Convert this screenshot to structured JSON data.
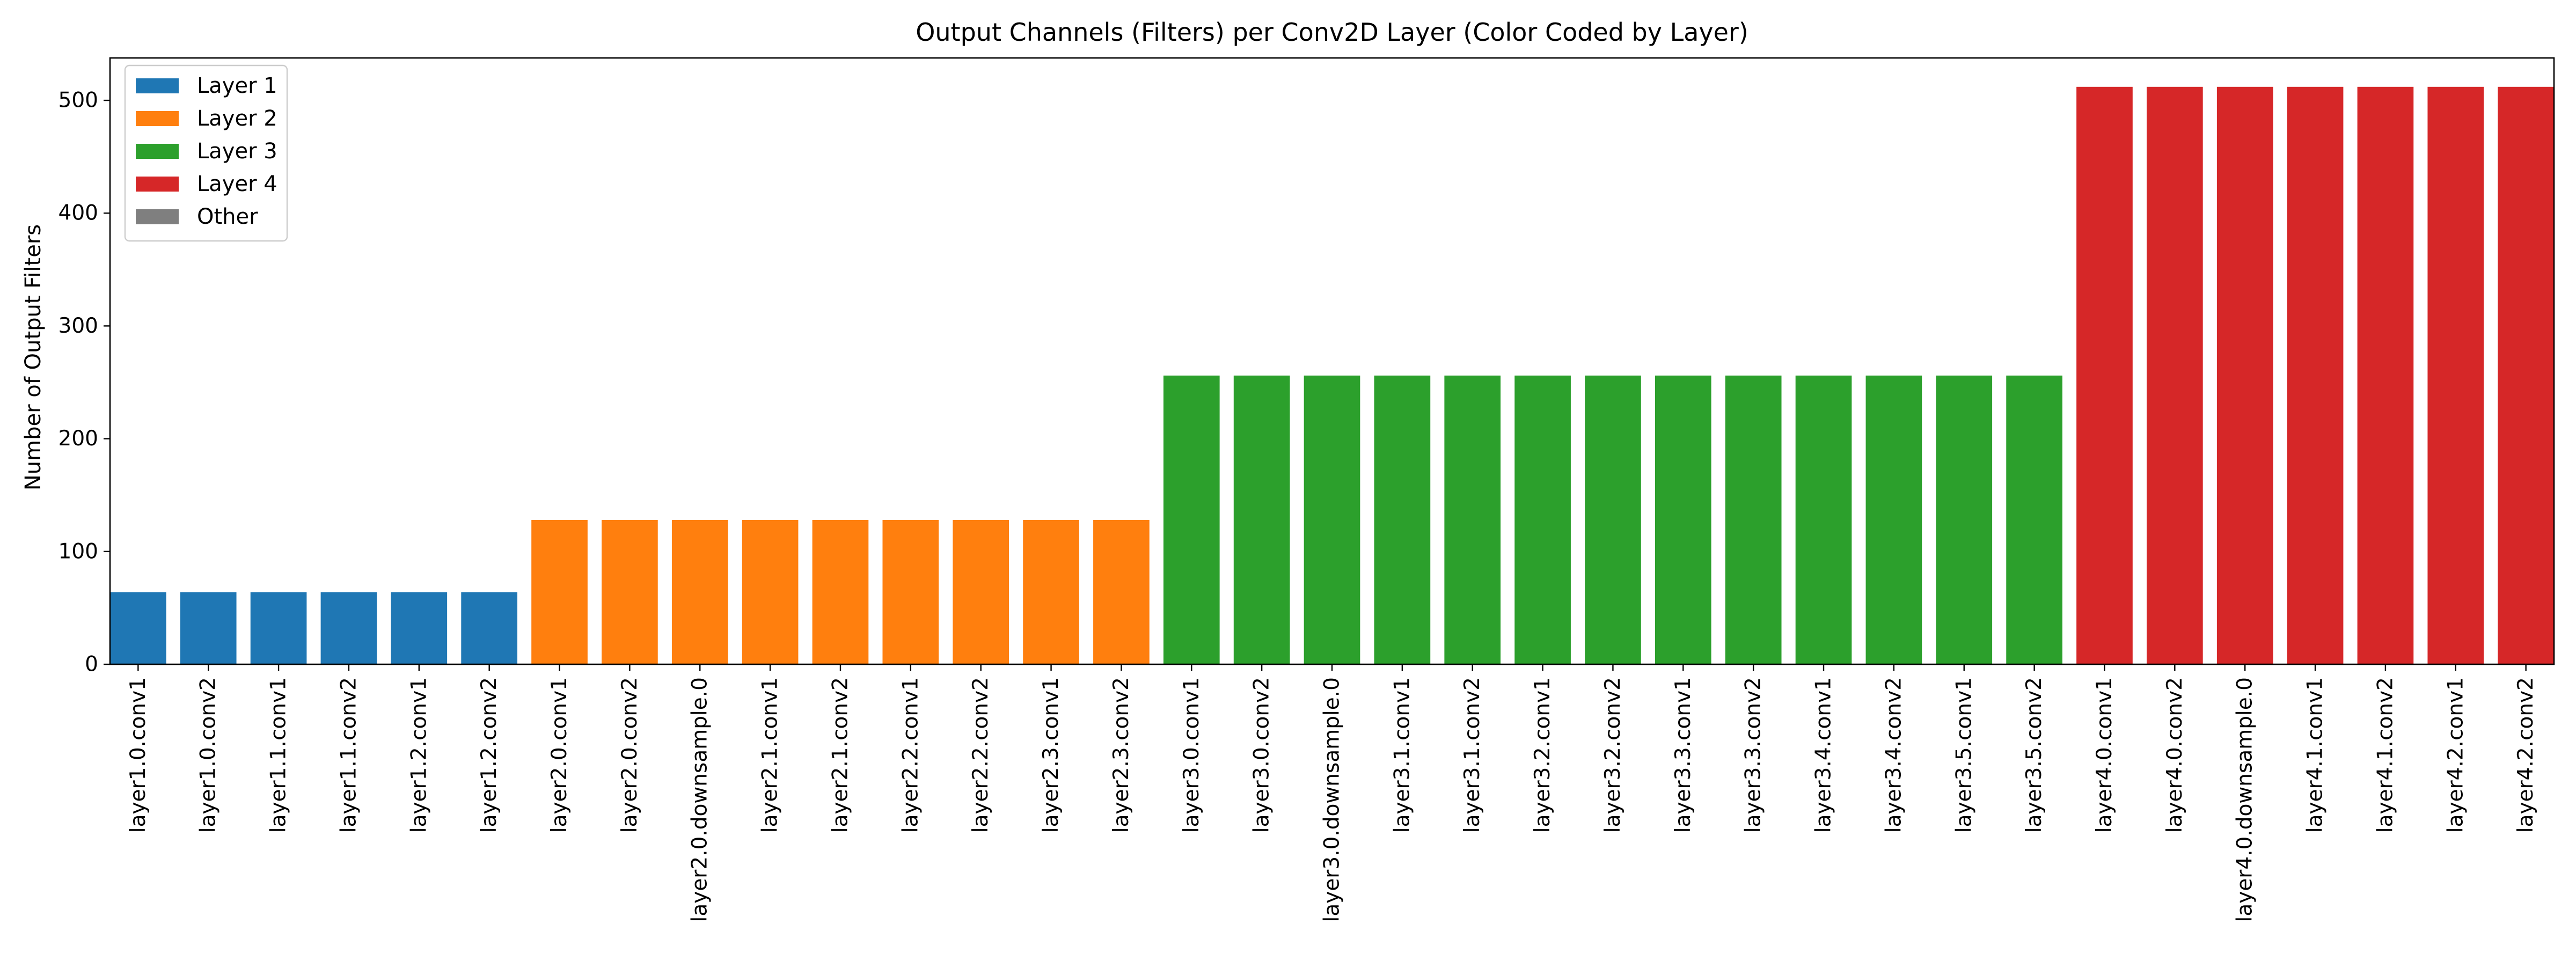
{
  "chart_data": {
    "type": "bar",
    "title": "Output Channels (Filters) per Conv2D Layer (Color Coded by Layer)",
    "xlabel": "",
    "ylabel": "Number of Output Filters",
    "ylim": [
      0,
      537.6
    ],
    "yticks": [
      0,
      100,
      200,
      300,
      400,
      500
    ],
    "grid": false,
    "legend_position": "top-left",
    "legend": [
      {
        "label": "Layer 1",
        "color": "#1f77b4"
      },
      {
        "label": "Layer 2",
        "color": "#ff7f0e"
      },
      {
        "label": "Layer 3",
        "color": "#2ca02c"
      },
      {
        "label": "Layer 4",
        "color": "#d62728"
      },
      {
        "label": "Other",
        "color": "#7f7f7f"
      }
    ],
    "categories": [
      "layer1.0.conv1",
      "layer1.0.conv2",
      "layer1.1.conv1",
      "layer1.1.conv2",
      "layer1.2.conv1",
      "layer1.2.conv2",
      "layer2.0.conv1",
      "layer2.0.conv2",
      "layer2.0.downsample.0",
      "layer2.1.conv1",
      "layer2.1.conv2",
      "layer2.2.conv1",
      "layer2.2.conv2",
      "layer2.3.conv1",
      "layer2.3.conv2",
      "layer3.0.conv1",
      "layer3.0.conv2",
      "layer3.0.downsample.0",
      "layer3.1.conv1",
      "layer3.1.conv2",
      "layer3.2.conv1",
      "layer3.2.conv2",
      "layer3.3.conv1",
      "layer3.3.conv2",
      "layer3.4.conv1",
      "layer3.4.conv2",
      "layer3.5.conv1",
      "layer3.5.conv2",
      "layer4.0.conv1",
      "layer4.0.conv2",
      "layer4.0.downsample.0",
      "layer4.1.conv1",
      "layer4.1.conv2",
      "layer4.2.conv1",
      "layer4.2.conv2"
    ],
    "values": [
      64,
      64,
      64,
      64,
      64,
      64,
      128,
      128,
      128,
      128,
      128,
      128,
      128,
      128,
      128,
      256,
      256,
      256,
      256,
      256,
      256,
      256,
      256,
      256,
      256,
      256,
      256,
      256,
      512,
      512,
      512,
      512,
      512,
      512,
      512
    ],
    "groups": [
      "Layer 1",
      "Layer 1",
      "Layer 1",
      "Layer 1",
      "Layer 1",
      "Layer 1",
      "Layer 2",
      "Layer 2",
      "Layer 2",
      "Layer 2",
      "Layer 2",
      "Layer 2",
      "Layer 2",
      "Layer 2",
      "Layer 2",
      "Layer 3",
      "Layer 3",
      "Layer 3",
      "Layer 3",
      "Layer 3",
      "Layer 3",
      "Layer 3",
      "Layer 3",
      "Layer 3",
      "Layer 3",
      "Layer 3",
      "Layer 3",
      "Layer 3",
      "Layer 4",
      "Layer 4",
      "Layer 4",
      "Layer 4",
      "Layer 4",
      "Layer 4",
      "Layer 4"
    ]
  }
}
